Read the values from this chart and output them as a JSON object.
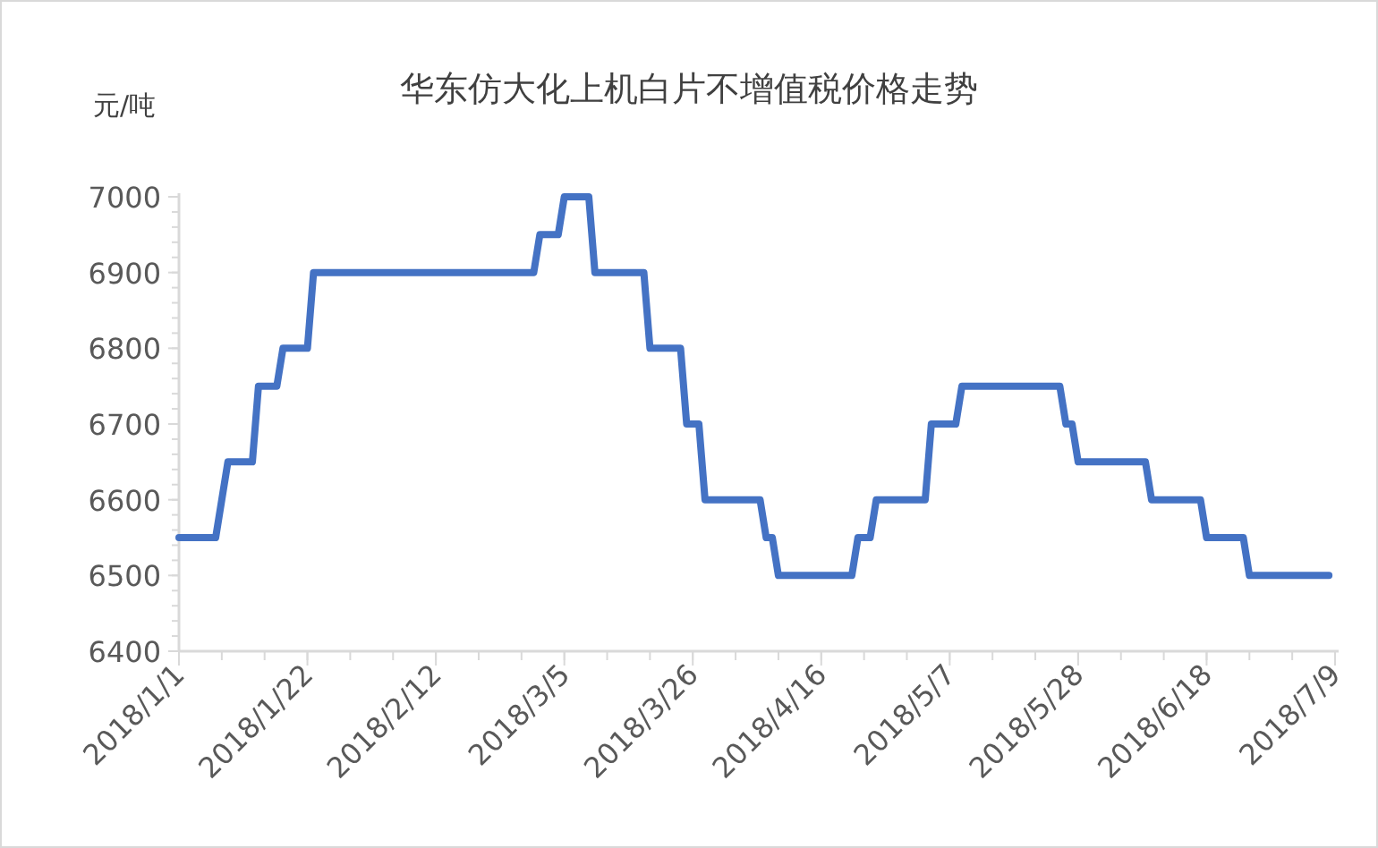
{
  "chart_data": {
    "type": "line",
    "title": "华东仿大化上机白片不增值税价格走势",
    "ylabel": "元/吨",
    "x": [
      "2018-01-01",
      "2018-01-07",
      "2018-01-08",
      "2018-01-09",
      "2018-01-13",
      "2018-01-14",
      "2018-01-17",
      "2018-01-18",
      "2018-01-22",
      "2018-01-23",
      "2018-02-28",
      "2018-03-01",
      "2018-03-04",
      "2018-03-05",
      "2018-03-09",
      "2018-03-10",
      "2018-03-18",
      "2018-03-19",
      "2018-03-24",
      "2018-03-25",
      "2018-03-27",
      "2018-03-28",
      "2018-04-06",
      "2018-04-07",
      "2018-04-08",
      "2018-04-09",
      "2018-04-21",
      "2018-04-22",
      "2018-04-24",
      "2018-04-25",
      "2018-05-03",
      "2018-05-04",
      "2018-05-08",
      "2018-05-09",
      "2018-05-25",
      "2018-05-26",
      "2018-05-27",
      "2018-05-28",
      "2018-06-08",
      "2018-06-09",
      "2018-06-17",
      "2018-06-18",
      "2018-06-24",
      "2018-06-25",
      "2018-07-08"
    ],
    "series": [
      {
        "color": "#4472c4",
        "values": [
          6550,
          6550,
          6600,
          6650,
          6650,
          6750,
          6750,
          6800,
          6800,
          6900,
          6900,
          6950,
          6950,
          7000,
          7000,
          6900,
          6900,
          6800,
          6800,
          6700,
          6700,
          6600,
          6600,
          6550,
          6550,
          6500,
          6500,
          6550,
          6550,
          6600,
          6600,
          6700,
          6700,
          6750,
          6750,
          6700,
          6700,
          6650,
          6650,
          6600,
          6600,
          6550,
          6550,
          6500,
          6500
        ]
      }
    ],
    "xlim": [
      "2018-01-01",
      "2018-07-09"
    ],
    "xticks": [
      {
        "value": "2018-01-01",
        "label": "2018/1/1"
      },
      {
        "value": "2018-01-22",
        "label": "2018/1/22"
      },
      {
        "value": "2018-02-12",
        "label": "2018/2/12"
      },
      {
        "value": "2018-03-05",
        "label": "2018/3/5"
      },
      {
        "value": "2018-03-26",
        "label": "2018/3/26"
      },
      {
        "value": "2018-04-16",
        "label": "2018/4/16"
      },
      {
        "value": "2018-05-07",
        "label": "2018/5/7"
      },
      {
        "value": "2018-05-28",
        "label": "2018/5/28"
      },
      {
        "value": "2018-06-18",
        "label": "2018/6/18"
      },
      {
        "value": "2018-07-09",
        "label": "2018/7/9"
      }
    ],
    "ylim": [
      6400,
      7000
    ],
    "yticks": [
      6400,
      6500,
      6600,
      6700,
      6800,
      6900,
      7000
    ],
    "grid": false,
    "marker": "none",
    "line_style": "solid"
  }
}
